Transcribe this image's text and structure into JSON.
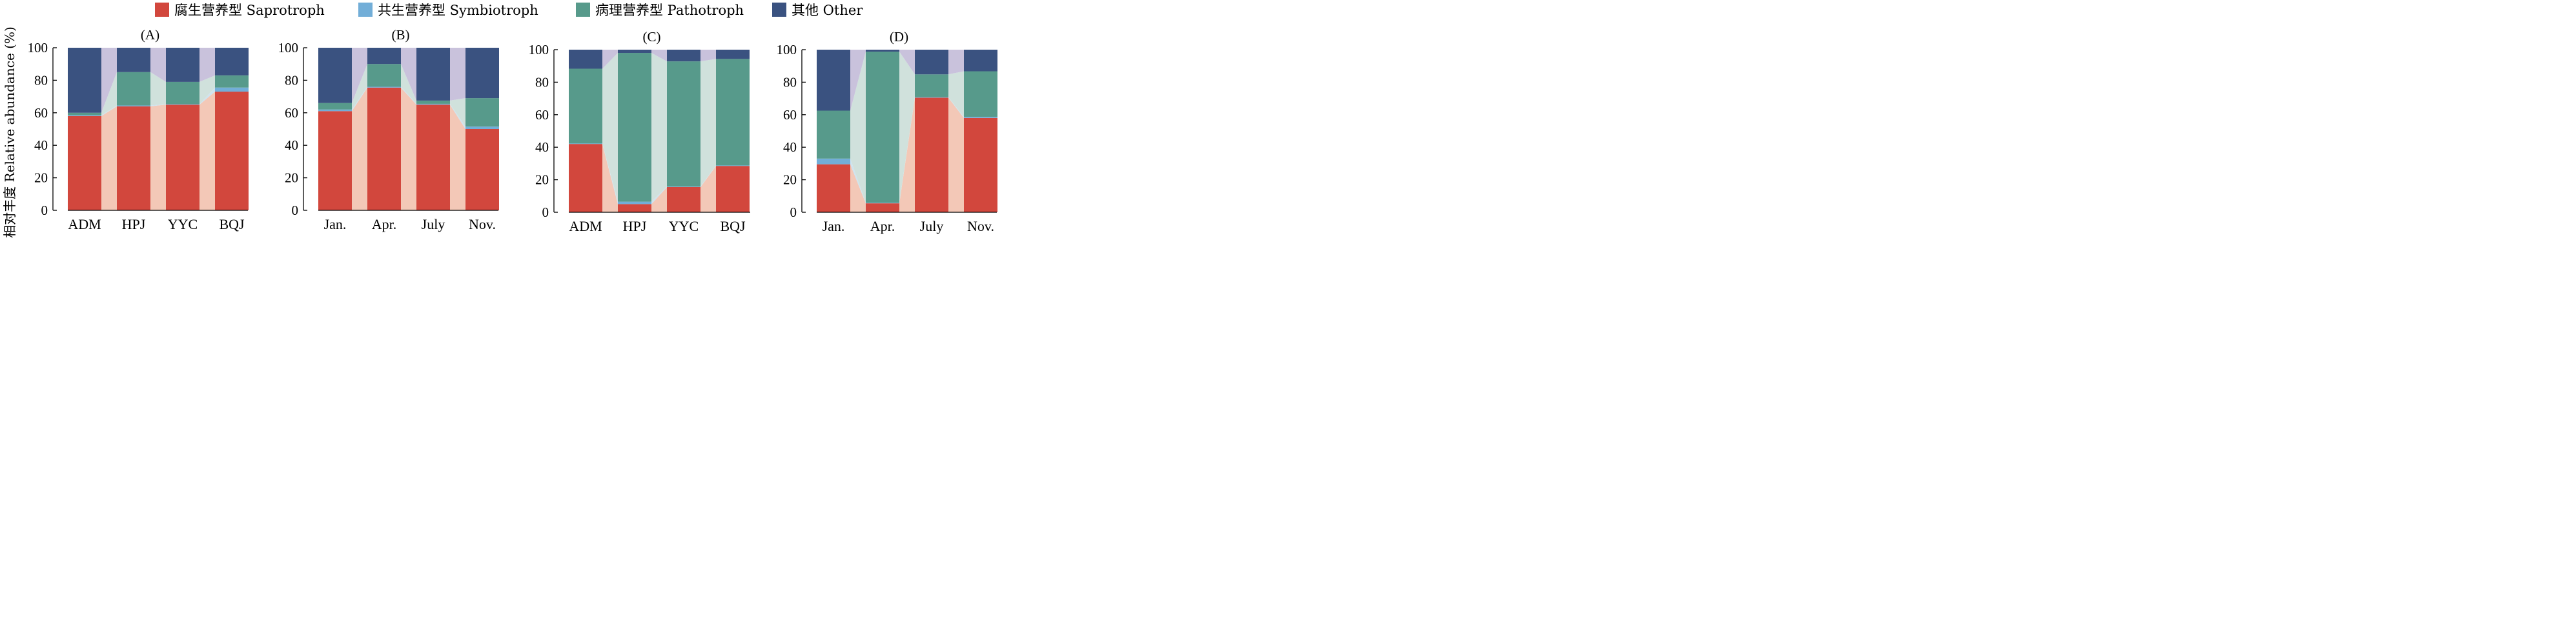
{
  "colors": {
    "Saprotroph": "#d2473d",
    "Symbiotroph": "#72aed8",
    "Pathotroph": "#579a8b",
    "Other": "#3a5280",
    "Saprotroph_band": "#f3c8b7",
    "Symbiotroph_band": "#cfe3ef",
    "Pathotroph_band": "#d0e1dc",
    "Other_band": "#c9c2dc"
  },
  "legend": [
    {
      "key": "Saprotroph",
      "label": "腐生营养型 Saprotroph"
    },
    {
      "key": "Symbiotroph",
      "label": "共生营养型 Symbiotroph"
    },
    {
      "key": "Pathotroph",
      "label": "病理营养型 Pathotroph"
    },
    {
      "key": "Other",
      "label": "其他 Other"
    }
  ],
  "ylabel": "相对丰度 Relative abundance (%)",
  "chart_data": [
    {
      "type": "bar",
      "stacked": true,
      "title": "(A)",
      "categories": [
        "ADM",
        "HPJ",
        "YYC",
        "BQJ"
      ],
      "ylim": [
        0,
        100
      ],
      "yticks": [
        0,
        20,
        40,
        60,
        80,
        100
      ],
      "series": [
        {
          "name": "腐生营养型 Saprotroph",
          "key": "Saprotroph",
          "values": [
            58,
            64,
            65,
            73
          ]
        },
        {
          "name": "共生营养型 Symbiotroph",
          "key": "Symbiotroph",
          "values": [
            0.5,
            0.5,
            0.3,
            2.5
          ]
        },
        {
          "name": "病理营养型 Pathotroph",
          "key": "Pathotroph",
          "values": [
            1.5,
            20.5,
            13.7,
            7.5
          ]
        },
        {
          "name": "其他 Other",
          "key": "Other",
          "values": [
            40,
            15,
            21,
            17
          ]
        }
      ]
    },
    {
      "type": "bar",
      "stacked": true,
      "title": "(B)",
      "categories": [
        "Jan.",
        "Apr.",
        "July",
        "Nov."
      ],
      "ylim": [
        0,
        100
      ],
      "yticks": [
        0,
        20,
        40,
        60,
        80,
        100
      ],
      "series": [
        {
          "name": "腐生营养型 Saprotroph",
          "key": "Saprotroph",
          "values": [
            61,
            75.5,
            65,
            50
          ]
        },
        {
          "name": "共生营养型 Symbiotroph",
          "key": "Symbiotroph",
          "values": [
            1,
            0.5,
            0.5,
            1.5
          ]
        },
        {
          "name": "病理营养型 Pathotroph",
          "key": "Pathotroph",
          "values": [
            4,
            14,
            2,
            17.5
          ]
        },
        {
          "name": "其他 Other",
          "key": "Other",
          "values": [
            34,
            10,
            32.5,
            31
          ]
        }
      ]
    },
    {
      "type": "bar",
      "stacked": true,
      "title": "(C)",
      "categories": [
        "ADM",
        "HPJ",
        "YYC",
        "BQJ"
      ],
      "ylim": [
        0,
        100
      ],
      "yticks": [
        0,
        20,
        40,
        60,
        80,
        100
      ],
      "series": [
        {
          "name": "腐生营养型 Saprotroph",
          "key": "Saprotroph",
          "values": [
            42,
            5,
            15.5,
            28.5
          ]
        },
        {
          "name": "共生营养型 Symbiotroph",
          "key": "Symbiotroph",
          "values": [
            0.3,
            1.5,
            0.3,
            0.3
          ]
        },
        {
          "name": "病理营养型 Pathotroph",
          "key": "Pathotroph",
          "values": [
            46,
            91.5,
            77,
            65.5
          ]
        },
        {
          "name": "其他 Other",
          "key": "Other",
          "values": [
            11.7,
            2,
            7.2,
            5.7
          ]
        }
      ]
    },
    {
      "type": "bar",
      "stacked": true,
      "title": "(D)",
      "categories": [
        "Jan.",
        "Apr.",
        "July",
        "Nov."
      ],
      "ylim": [
        0,
        100
      ],
      "yticks": [
        0,
        20,
        40,
        60,
        80,
        100
      ],
      "series": [
        {
          "name": "腐生营养型 Saprotroph",
          "key": "Saprotroph",
          "values": [
            29.5,
            5.5,
            70.5,
            58
          ]
        },
        {
          "name": "共生营养型 Symbiotroph",
          "key": "Symbiotroph",
          "values": [
            3.5,
            0.3,
            0.3,
            0.7
          ]
        },
        {
          "name": "病理营养型 Pathotroph",
          "key": "Pathotroph",
          "values": [
            29.5,
            93,
            14,
            28
          ]
        },
        {
          "name": "其他 Other",
          "key": "Other",
          "values": [
            37.5,
            1.2,
            15.2,
            13.3
          ]
        }
      ]
    }
  ]
}
